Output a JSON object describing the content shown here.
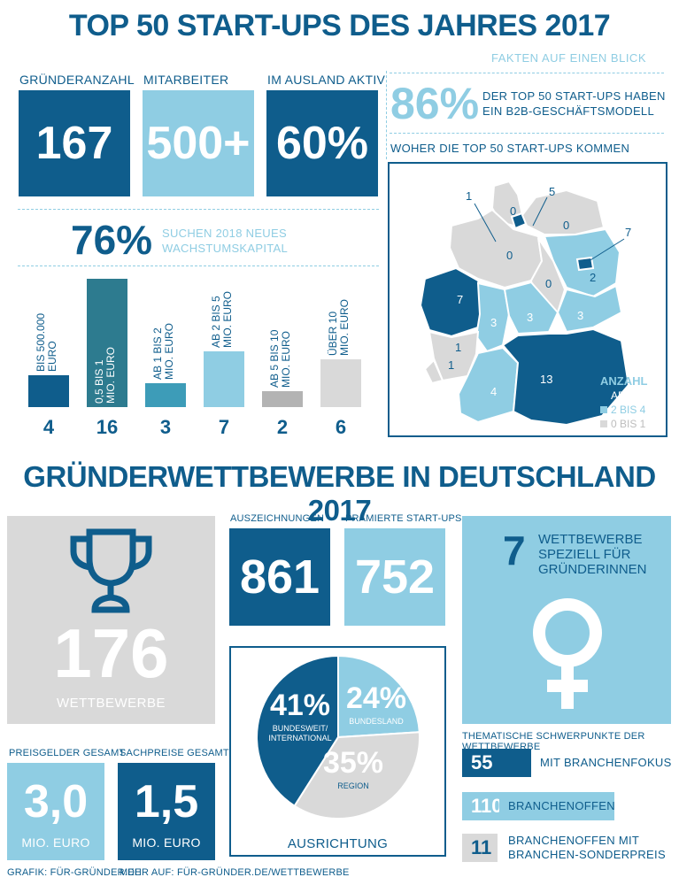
{
  "header": {
    "title": "TOP 50 START-UPS DES JAHRES 2017",
    "subtitle": "FAKTEN AUF EINEN BLICK"
  },
  "stats": [
    {
      "label": "GRÜNDERANZAHL",
      "value": "167",
      "color": "#0f5d8c"
    },
    {
      "label": "MITARBEITER",
      "value": "500+",
      "color": "#8fcde3"
    },
    {
      "label": "IM AUSLAND AKTIV",
      "value": "60%",
      "color": "#0f5d8c"
    }
  ],
  "b2b": {
    "value": "86%",
    "text_line1": "DER TOP 50 START-UPS HABEN",
    "text_line2": "EIN B2B-GESCHÄFTSMODELL"
  },
  "capital": {
    "value": "76%",
    "text_line1": "SUCHEN 2018 NEUES",
    "text_line2": "WACHSTUMSKAPITAL"
  },
  "chart_data": {
    "type": "bar",
    "categories": [
      "BIS 500.000 EURO",
      "0,5 BIS 1 MIO. EURO",
      "AB 1 BIS 2 MIO. EURO",
      "AB 2 BIS 5 MIO. EURO",
      "AB 5 BIS 10 MIO. EURO",
      "ÜBER 10 MIO. EURO"
    ],
    "label_lines": [
      [
        "BIS 500.000",
        "EURO"
      ],
      [
        "0,5 BIS 1",
        "MIO. EURO"
      ],
      [
        "AB 1 BIS 2",
        "MIO. EURO"
      ],
      [
        "AB 2 BIS 5",
        "MIO. EURO"
      ],
      [
        "AB 5 BIS 10",
        "MIO. EURO"
      ],
      [
        "ÜBER 10",
        "MIO. EURO"
      ]
    ],
    "values": [
      4,
      16,
      3,
      7,
      2,
      6
    ],
    "value_labels": [
      "4",
      "16",
      "3",
      "7",
      "2",
      "6"
    ],
    "colors": [
      "#0f5d8c",
      "#2d7b8f",
      "#3d9cb8",
      "#8fcde3",
      "#b3b3b3",
      "#d9d9d9"
    ],
    "label_colors": [
      "#0f5d8c",
      "#ffffff",
      "#0f5d8c",
      "#0f5d8c",
      "#0f5d8c",
      "#0f5d8c"
    ],
    "ylim": [
      0,
      16
    ]
  },
  "map": {
    "title": "WOHER DIE TOP 50 START-UPS KOMMEN",
    "legend_title": "ANZAHL",
    "legend": [
      {
        "label": "AB 5",
        "color": "#0f5d8c"
      },
      {
        "label": "2 BIS 4",
        "color": "#8fcde3"
      },
      {
        "label": "0 BIS 1",
        "color": "#d9d9d9"
      }
    ],
    "region_numbers": [
      "1",
      "5",
      "0",
      "0",
      "7",
      "0",
      "2",
      "0",
      "7",
      "3",
      "3",
      "3",
      "1",
      "1",
      "4",
      "13"
    ]
  },
  "section2": {
    "title": "GRÜNDERWETTBEWERBE IN DEUTSCHLAND 2017",
    "competitions": {
      "value": "176",
      "label": "WETTBEWERBE",
      "icon": "trophy-icon"
    },
    "awards": {
      "label": "AUSZEICHNUNGEN",
      "value": "861"
    },
    "startups": {
      "label": "PRÄMIERTE START-UPS",
      "value": "752"
    },
    "female": {
      "value": "7",
      "line1": "WETTBEWERBE",
      "line2": "SPEZIELL FÜR",
      "line3": "GRÜNDERINNEN",
      "icon": "female-symbol-icon"
    },
    "prize_money": {
      "label": "PREISGELDER GESAMT",
      "value": "3,0",
      "unit": "MIO. EURO"
    },
    "prizes": {
      "label": "SACHPREISE GESAMT",
      "value": "1,5",
      "unit": "MIO. EURO"
    },
    "orientation": {
      "title": "AUSRICHTUNG",
      "slices": [
        {
          "value": 41,
          "pct": "41%",
          "label1": "BUNDESWEIT/",
          "label2": "INTERNATIONAL",
          "color": "#0f5d8c"
        },
        {
          "value": 24,
          "pct": "24%",
          "label1": "BUNDESLAND",
          "label2": "",
          "color": "#8fcde3"
        },
        {
          "value": 35,
          "pct": "35%",
          "label1": "REGION",
          "label2": "",
          "color": "#d9d9d9"
        }
      ]
    },
    "topics": {
      "title": "THEMATISCHE SCHWERPUNKTE DER WETTBEWERBE",
      "items": [
        {
          "value": "55",
          "label1": "MIT BRANCHENFOKUS",
          "label2": "",
          "color": "#0f5d8c"
        },
        {
          "value": "110",
          "label1": "BRANCHENOFFEN",
          "label2": "",
          "color": "#8fcde3"
        },
        {
          "value": "11",
          "label1": "BRANCHENOFFEN MIT",
          "label2": "BRANCHEN-SONDERPREIS",
          "color": "#d9d9d9"
        }
      ]
    }
  },
  "footer": {
    "left": "GRAFIK: FÜR-GRÜNDER.DE",
    "right": "MEHR AUF: FÜR-GRÜNDER.DE/WETTBEWERBE"
  }
}
